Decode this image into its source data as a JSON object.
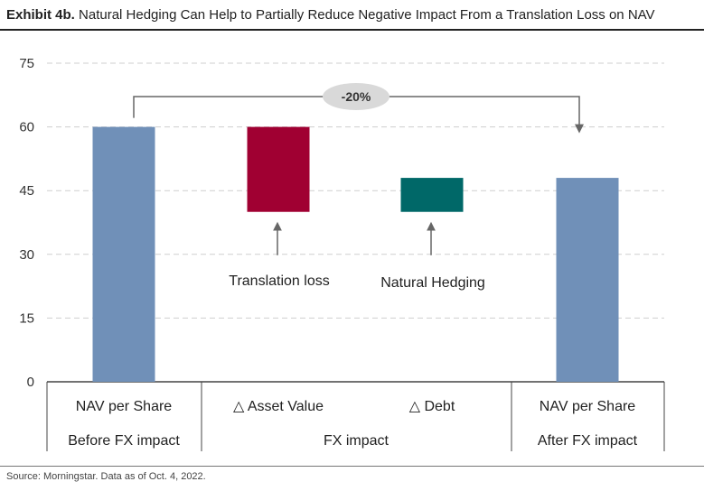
{
  "header": {
    "lead": "Exhibit 4b.",
    "title": "Natural Hedging Can Help to Partially Reduce Negative Impact From a Translation Loss on NAV"
  },
  "source": "Source: Morningstar. Data as of Oct. 4, 2022.",
  "colors": {
    "nav_bar": "#7090b8",
    "translation_loss": "#a00032",
    "natural_hedging": "#006868",
    "grid": "#cfcfcf",
    "pill": "#d9d9d9"
  },
  "chart_data": {
    "type": "bar",
    "subtype": "waterfall",
    "title": "Natural Hedging Can Help to Partially Reduce Negative Impact From a Translation Loss on NAV",
    "ylim": [
      0,
      75
    ],
    "yticks": [
      0,
      15,
      30,
      45,
      60,
      75
    ],
    "grid": true,
    "categories": [
      "NAV per Share",
      "△ Asset Value",
      "△ Debt",
      "NAV per Share"
    ],
    "groups": [
      "Before FX impact",
      "FX impact",
      "After FX impact"
    ],
    "bars": [
      {
        "category": "NAV per Share",
        "bottom": 0,
        "top": 60,
        "color": "#7090b8"
      },
      {
        "category": "△ Asset Value",
        "bottom": 40,
        "top": 60,
        "color": "#a00032",
        "annotation": "Translation loss"
      },
      {
        "category": "△ Debt",
        "bottom": 40,
        "top": 48,
        "color": "#006868",
        "annotation": "Natural Hedging"
      },
      {
        "category": "NAV per Share",
        "bottom": 0,
        "top": 48,
        "color": "#7090b8"
      }
    ],
    "change_label": "-20%"
  }
}
